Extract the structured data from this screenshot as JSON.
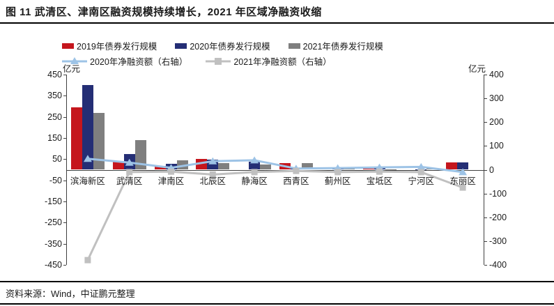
{
  "title": "图 11  武清区、津南区融资规模持续增长，2021 年区域净融资收缩",
  "source": "资料来源：Wind，中证鹏元整理",
  "unit_left": "亿元",
  "unit_right": "亿元",
  "colors": {
    "bar_2019": "#C5161D",
    "bar_2020": "#242E75",
    "bar_2021": "#7F7F7F",
    "line_2020_net": "#9DC3E6",
    "line_2021_net": "#C0C0C0",
    "axis": "#404040",
    "text": "#1a1a1a"
  },
  "chart_data": {
    "type": "bar",
    "categories": [
      "滨海新区",
      "武清区",
      "津南区",
      "北辰区",
      "静海区",
      "西青区",
      "蓟州区",
      "宝坻区",
      "宁河区",
      "东丽区"
    ],
    "series": [
      {
        "name": "2019年债券发行规模",
        "kind": "bar",
        "axis": "left",
        "color": "#C5161D",
        "values": [
          295,
          40,
          18,
          50,
          0,
          32,
          0,
          5,
          0,
          33
        ]
      },
      {
        "name": "2020年债券发行规模",
        "kind": "bar",
        "axis": "left",
        "color": "#242E75",
        "values": [
          400,
          73,
          28,
          48,
          38,
          8,
          10,
          10,
          3,
          33
        ]
      },
      {
        "name": "2021年债券发行规模",
        "kind": "bar",
        "axis": "left",
        "color": "#7F7F7F",
        "values": [
          270,
          140,
          45,
          32,
          25,
          30,
          5,
          3,
          6,
          0
        ]
      },
      {
        "name": "2020年净融资额（右轴）",
        "kind": "line",
        "axis": "right",
        "color": "#9DC3E6",
        "marker": "triangle",
        "values": [
          46,
          30,
          8,
          36,
          40,
          5,
          7,
          10,
          12,
          -10
        ]
      },
      {
        "name": "2021年净融资额（右轴）",
        "kind": "line",
        "axis": "right",
        "color": "#C0C0C0",
        "marker": "square",
        "values": [
          -380,
          -10,
          -8,
          -20,
          -10,
          -5,
          -10,
          -8,
          -10,
          -75
        ]
      }
    ],
    "left_axis": {
      "label": "亿元",
      "min": -450,
      "max": 450,
      "ticks": [
        450,
        350,
        250,
        150,
        50,
        -50,
        -150,
        -250,
        -350,
        -450
      ]
    },
    "right_axis": {
      "label": "亿元",
      "min": -400,
      "max": 400,
      "ticks": [
        400,
        300,
        200,
        100,
        0,
        -100,
        -200,
        -300,
        -400
      ]
    },
    "legend_position": "top",
    "grid": false
  }
}
